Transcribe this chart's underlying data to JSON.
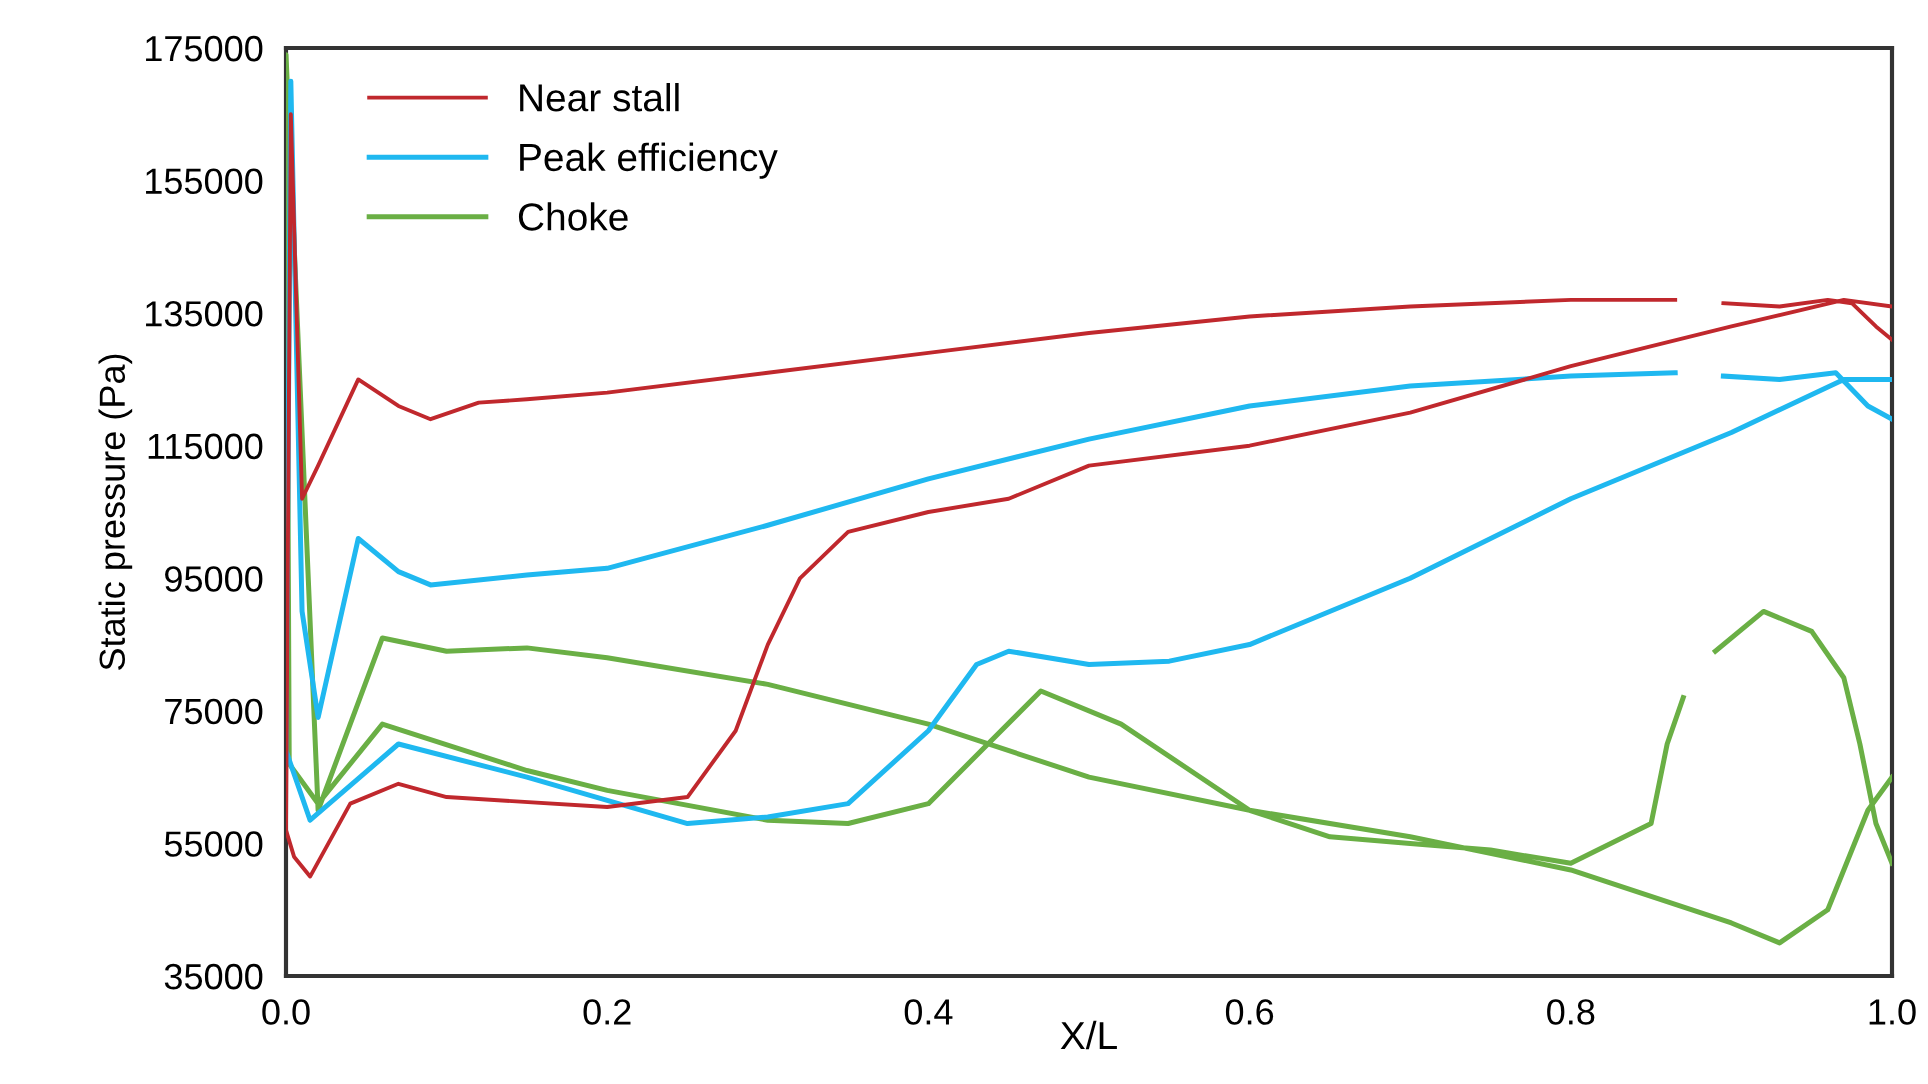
{
  "chart_data": {
    "type": "line",
    "xlabel": "X/L",
    "ylabel": "Static pressure (Pa)",
    "xlim": [
      0,
      1
    ],
    "ylim": [
      35000,
      175000
    ],
    "xticks": [
      {
        "value": 0,
        "label": "0.0"
      },
      {
        "value": 0.2,
        "label": "0.2"
      },
      {
        "value": 0.4,
        "label": "0.4"
      },
      {
        "value": 0.6,
        "label": "0.6"
      },
      {
        "value": 0.8,
        "label": "0.8"
      },
      {
        "value": 1,
        "label": "1.0"
      }
    ],
    "yticks": [
      35000,
      55000,
      75000,
      95000,
      115000,
      135000,
      155000,
      175000
    ],
    "grid": false,
    "legend": "top left",
    "marker": "none",
    "line_style": "solid",
    "series": [
      {
        "name": "Near stall",
        "color": "#c0282d",
        "x": [
          1.0,
          0.97,
          0.9,
          0.8,
          0.7,
          0.6,
          0.5,
          0.45,
          0.4,
          0.35,
          0.32,
          0.3,
          0.28,
          0.25,
          0.2,
          0.1,
          0.07,
          0.04,
          0.015,
          0.005,
          0.0,
          0.003,
          0.01,
          0.02,
          0.045,
          0.07,
          0.09,
          0.12,
          0.15,
          0.2,
          0.3,
          0.4,
          0.5,
          0.6,
          0.7,
          0.8,
          0.865,
          0.88,
          0.895,
          0.93,
          0.96,
          0.975,
          0.99,
          1.0
        ],
        "values": [
          136000,
          137000,
          133000,
          127000,
          120000,
          115000,
          112000,
          107000,
          105000,
          102000,
          95000,
          85000,
          72000,
          62000,
          60500,
          62000,
          64000,
          61000,
          50000,
          53000,
          57000,
          165000,
          107000,
          112000,
          125000,
          121000,
          119000,
          121500,
          122000,
          123000,
          126000,
          129000,
          132000,
          134500,
          136000,
          137000,
          137000,
          null,
          136500,
          136000,
          137000,
          136500,
          133000,
          131000
        ]
      },
      {
        "name": "Peak efficiency",
        "color": "#1fb8f0",
        "x": [
          1.0,
          0.97,
          0.9,
          0.8,
          0.7,
          0.6,
          0.55,
          0.5,
          0.45,
          0.43,
          0.4,
          0.35,
          0.3,
          0.25,
          0.15,
          0.07,
          0.015,
          0.0,
          0.003,
          0.01,
          0.02,
          0.045,
          0.07,
          0.09,
          0.15,
          0.2,
          0.3,
          0.4,
          0.5,
          0.6,
          0.7,
          0.8,
          0.865,
          0.88,
          0.895,
          0.93,
          0.965,
          0.985,
          1.0
        ],
        "values": [
          125000,
          125000,
          117000,
          107000,
          95000,
          85000,
          82500,
          82000,
          84000,
          82000,
          72000,
          61000,
          59000,
          58000,
          65000,
          70000,
          58500,
          69000,
          170000,
          90000,
          74000,
          101000,
          96000,
          94000,
          95500,
          96500,
          103000,
          110000,
          116000,
          121000,
          124000,
          125500,
          126000,
          null,
          125500,
          125000,
          126000,
          121000,
          119000
        ]
      },
      {
        "name": "Choke",
        "color": "#6aaf45",
        "x": [
          1.0,
          0.985,
          0.96,
          0.93,
          0.9,
          0.8,
          0.7,
          0.6,
          0.5,
          0.4,
          0.3,
          0.2,
          0.15,
          0.1,
          0.06,
          0.02,
          0.0,
          0.002,
          0.02,
          0.06,
          0.15,
          0.2,
          0.3,
          0.35,
          0.4,
          0.47,
          0.52,
          0.6,
          0.65,
          0.7,
          0.75,
          0.8,
          0.85,
          0.86,
          0.87,
          0.88,
          0.89,
          0.92,
          0.95,
          0.97,
          0.98,
          0.99,
          1.0
        ],
        "values": [
          65000,
          60000,
          45000,
          40000,
          43000,
          51000,
          56000,
          60000,
          65000,
          73000,
          79000,
          83000,
          84500,
          84000,
          86000,
          60000,
          174000,
          67000,
          61000,
          73000,
          66000,
          63000,
          58500,
          58000,
          61000,
          78000,
          73000,
          60000,
          56000,
          55000,
          54000,
          52000,
          58000,
          70000,
          77000,
          null,
          84000,
          90000,
          87000,
          80000,
          70000,
          58000,
          52000
        ]
      }
    ]
  }
}
